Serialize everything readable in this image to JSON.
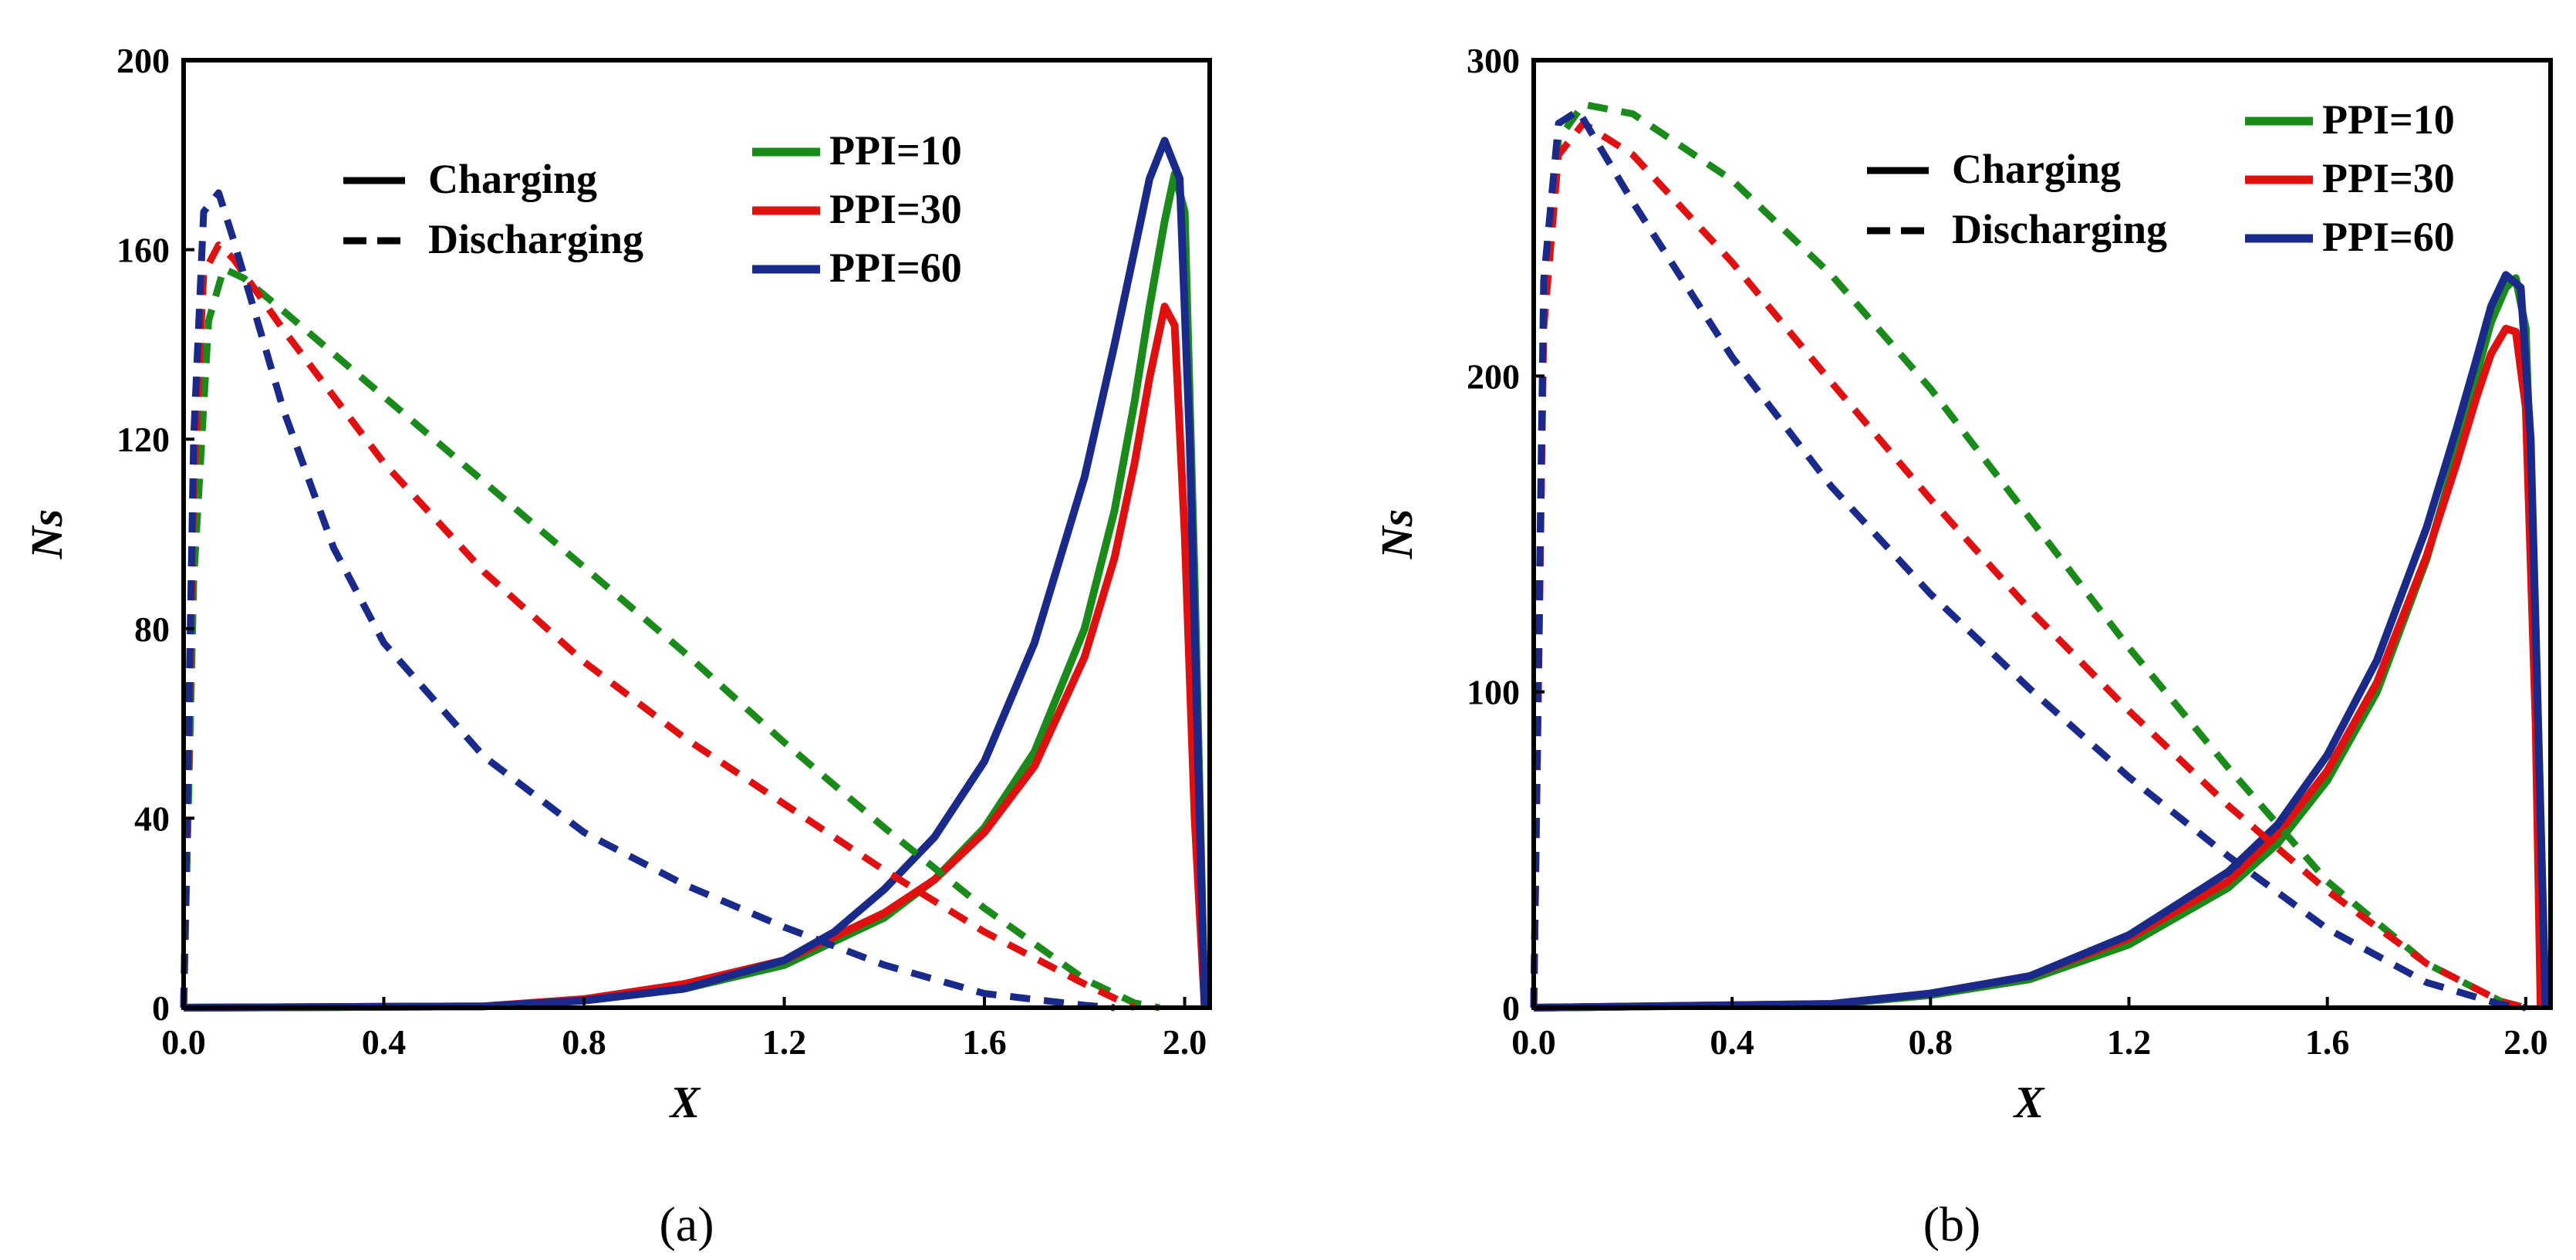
{
  "chart_data": [
    {
      "type": "line",
      "panel_label": "(a)",
      "xlabel": "X",
      "ylabel": "Ns",
      "xlim": [
        0,
        2.05
      ],
      "ylim": [
        0,
        200
      ],
      "xticks": [
        0.0,
        0.4,
        0.8,
        1.2,
        1.6,
        2.0
      ],
      "xtick_labels": [
        "0.0",
        "0.4",
        "0.8",
        "1.2",
        "1.6",
        "2.0"
      ],
      "yticks": [
        0,
        40,
        80,
        120,
        160,
        200
      ],
      "ytick_labels": [
        "0",
        "40",
        "80",
        "120",
        "160",
        "200"
      ],
      "style_legend": [
        {
          "label": "Charging",
          "style": "solid"
        },
        {
          "label": "Discharging",
          "style": "dashed"
        }
      ],
      "color_legend": [
        {
          "label": "PPI=10",
          "color": "#1a8a1a"
        },
        {
          "label": "PPI=30",
          "color": "#e01010"
        },
        {
          "label": "PPI=60",
          "color": "#1a2a8a"
        }
      ],
      "series": [
        {
          "name": "PPI=10 Charging",
          "color": "#1a8a1a",
          "style": "solid",
          "x": [
            0.0,
            0.6,
            0.8,
            1.0,
            1.2,
            1.4,
            1.5,
            1.6,
            1.7,
            1.8,
            1.86,
            1.9,
            1.93,
            1.96,
            1.98,
            2.0,
            2.02,
            2.04
          ],
          "y": [
            0,
            0.3,
            1.5,
            4,
            9,
            19,
            27,
            38,
            54,
            80,
            105,
            128,
            148,
            166,
            176,
            168,
            90,
            0
          ]
        },
        {
          "name": "PPI=30 Charging",
          "color": "#e01010",
          "style": "solid",
          "x": [
            0.0,
            0.6,
            0.8,
            1.0,
            1.2,
            1.4,
            1.5,
            1.6,
            1.7,
            1.8,
            1.86,
            1.9,
            1.93,
            1.96,
            1.98,
            2.0,
            2.02,
            2.04
          ],
          "y": [
            0,
            0.3,
            1.8,
            5,
            10,
            20,
            27,
            37,
            51,
            74,
            95,
            115,
            133,
            148,
            144,
            100,
            40,
            0
          ]
        },
        {
          "name": "PPI=60 Charging",
          "color": "#1a2a8a",
          "style": "solid",
          "x": [
            0.0,
            0.6,
            0.8,
            1.0,
            1.2,
            1.3,
            1.4,
            1.5,
            1.6,
            1.7,
            1.8,
            1.86,
            1.9,
            1.93,
            1.96,
            1.99,
            2.01,
            2.03,
            2.04
          ],
          "y": [
            0,
            0.3,
            1.5,
            4,
            10,
            16,
            25,
            36,
            52,
            77,
            112,
            140,
            160,
            175,
            183,
            175,
            120,
            40,
            0
          ]
        },
        {
          "name": "PPI=10 Discharging",
          "color": "#1a8a1a",
          "style": "dashed",
          "x": [
            0.0,
            0.02,
            0.05,
            0.08,
            0.12,
            0.2,
            0.4,
            0.6,
            0.8,
            1.0,
            1.2,
            1.4,
            1.6,
            1.8,
            1.9,
            1.95
          ],
          "y": [
            0,
            90,
            145,
            156,
            154,
            147,
            129,
            111,
            93,
            75,
            56,
            38,
            21,
            6,
            1,
            0
          ]
        },
        {
          "name": "PPI=30 Discharging",
          "color": "#e01010",
          "style": "dashed",
          "x": [
            0.0,
            0.02,
            0.04,
            0.07,
            0.1,
            0.2,
            0.3,
            0.4,
            0.6,
            0.8,
            1.0,
            1.2,
            1.4,
            1.6,
            1.8,
            1.9
          ],
          "y": [
            0,
            110,
            155,
            161,
            158,
            143,
            129,
            115,
            92,
            73,
            57,
            43,
            29,
            16,
            5,
            0
          ]
        },
        {
          "name": "PPI=60 Discharging",
          "color": "#1a2a8a",
          "style": "dashed",
          "x": [
            0.0,
            0.02,
            0.04,
            0.07,
            0.1,
            0.2,
            0.3,
            0.4,
            0.6,
            0.8,
            1.0,
            1.2,
            1.4,
            1.6,
            1.8,
            1.86
          ],
          "y": [
            0,
            120,
            168,
            172,
            162,
            126,
            97,
            77,
            53,
            37,
            26,
            17,
            9,
            3,
            0.5,
            0
          ]
        }
      ]
    },
    {
      "type": "line",
      "panel_label": "(b)",
      "xlabel": "X",
      "ylabel": "Ns",
      "xlim": [
        0,
        2.05
      ],
      "ylim": [
        0,
        300
      ],
      "xticks": [
        0.0,
        0.4,
        0.8,
        1.2,
        1.6,
        2.0
      ],
      "xtick_labels": [
        "0.0",
        "0.4",
        "0.8",
        "1.2",
        "1.6",
        "2.0"
      ],
      "yticks": [
        0,
        100,
        200,
        300
      ],
      "ytick_labels": [
        "0",
        "100",
        "200",
        "300"
      ],
      "style_legend": [
        {
          "label": "Charging",
          "style": "solid"
        },
        {
          "label": "Discharging",
          "style": "dashed"
        }
      ],
      "color_legend": [
        {
          "label": "PPI=10",
          "color": "#1a8a1a"
        },
        {
          "label": "PPI=30",
          "color": "#e01010"
        },
        {
          "label": "PPI=60",
          "color": "#1a2a8a"
        }
      ],
      "series": [
        {
          "name": "PPI=10 Charging",
          "color": "#1a8a1a",
          "style": "solid",
          "x": [
            0.0,
            0.6,
            0.8,
            1.0,
            1.2,
            1.4,
            1.5,
            1.6,
            1.7,
            1.8,
            1.86,
            1.9,
            1.93,
            1.96,
            1.98,
            2.0,
            2.02,
            2.04
          ],
          "y": [
            0,
            1,
            4,
            9,
            20,
            38,
            52,
            72,
            100,
            142,
            175,
            200,
            217,
            228,
            231,
            215,
            120,
            0
          ]
        },
        {
          "name": "PPI=30 Charging",
          "color": "#e01010",
          "style": "solid",
          "x": [
            0.0,
            0.6,
            0.8,
            1.0,
            1.2,
            1.4,
            1.5,
            1.6,
            1.7,
            1.8,
            1.86,
            1.9,
            1.93,
            1.96,
            1.98,
            2.0,
            2.02,
            2.03
          ],
          "y": [
            0,
            1.2,
            4.5,
            10,
            22,
            40,
            55,
            75,
            103,
            143,
            172,
            193,
            207,
            215,
            214,
            190,
            90,
            0
          ]
        },
        {
          "name": "PPI=60 Charging",
          "color": "#1a2a8a",
          "style": "solid",
          "x": [
            0.0,
            0.6,
            0.8,
            1.0,
            1.2,
            1.4,
            1.5,
            1.6,
            1.7,
            1.8,
            1.86,
            1.9,
            1.93,
            1.96,
            1.99,
            2.01,
            2.03,
            2.04
          ],
          "y": [
            0,
            1.2,
            4.5,
            10,
            23,
            43,
            58,
            80,
            110,
            152,
            183,
            205,
            222,
            232,
            228,
            180,
            60,
            0
          ]
        },
        {
          "name": "PPI=10 Discharging",
          "color": "#1a8a1a",
          "style": "dashed",
          "x": [
            0.0,
            0.02,
            0.05,
            0.1,
            0.2,
            0.4,
            0.6,
            0.8,
            1.0,
            1.2,
            1.4,
            1.6,
            1.8,
            1.95,
            2.0
          ],
          "y": [
            0,
            220,
            275,
            286,
            283,
            262,
            232,
            196,
            155,
            114,
            76,
            40,
            14,
            2,
            0
          ]
        },
        {
          "name": "PPI=30 Discharging",
          "color": "#e01010",
          "style": "dashed",
          "x": [
            0.0,
            0.02,
            0.05,
            0.1,
            0.2,
            0.4,
            0.6,
            0.8,
            1.0,
            1.2,
            1.4,
            1.6,
            1.8,
            1.95,
            2.0
          ],
          "y": [
            0,
            215,
            270,
            280,
            270,
            236,
            198,
            161,
            126,
            94,
            64,
            37,
            14,
            2,
            0
          ]
        },
        {
          "name": "PPI=60 Discharging",
          "color": "#1a2a8a",
          "style": "dashed",
          "x": [
            0.0,
            0.02,
            0.05,
            0.09,
            0.12,
            0.2,
            0.4,
            0.6,
            0.8,
            1.0,
            1.2,
            1.4,
            1.6,
            1.8,
            1.95,
            2.0
          ],
          "y": [
            0,
            230,
            280,
            284,
            276,
            255,
            206,
            165,
            131,
            101,
            73,
            48,
            25,
            8,
            1,
            0
          ]
        }
      ]
    }
  ]
}
